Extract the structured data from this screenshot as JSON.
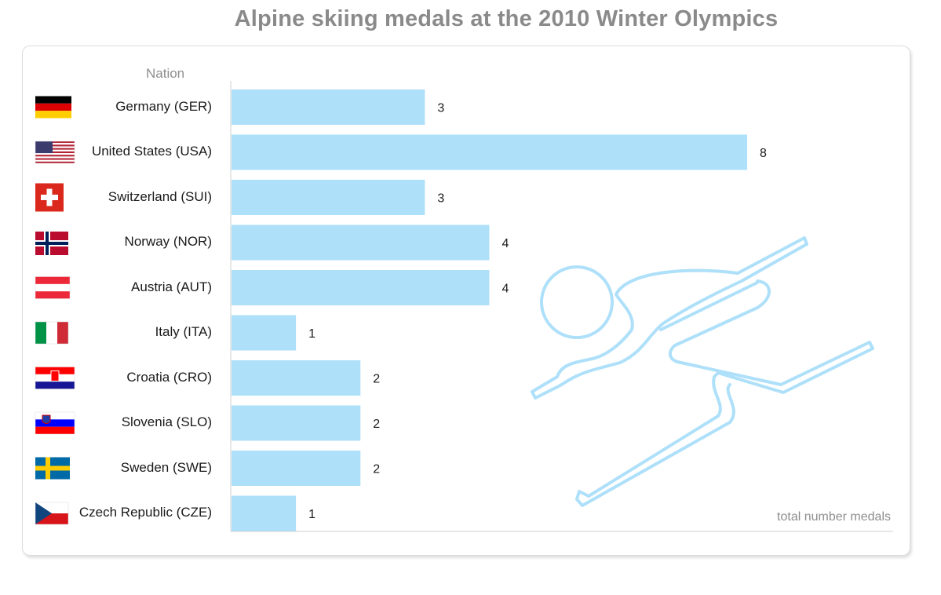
{
  "chart_data": {
    "type": "bar",
    "orientation": "horizontal",
    "title": "Alpine skiing medals at the 2010 Winter Olympics",
    "category_header": "Nation",
    "xlabel": "total number medals",
    "categories": [
      "Germany (GER)",
      "United States (USA)",
      "Switzerland (SUI)",
      "Norway (NOR)",
      "Austria (AUT)",
      "Italy (ITA)",
      "Croatia (CRO)",
      "Slovenia (SLO)",
      "Sweden (SWE)",
      "Czech Republic (CZE)"
    ],
    "values": [
      3,
      8,
      3,
      4,
      4,
      1,
      2,
      2,
      2,
      1
    ],
    "xlim": [
      0,
      8
    ],
    "grid": false,
    "bar_color": "#aee0fa"
  },
  "flags": [
    "germany-flag",
    "usa-flag",
    "switzerland-flag",
    "norway-flag",
    "austria-flag",
    "italy-flag",
    "croatia-flag",
    "slovenia-flag",
    "sweden-flag",
    "czech-flag"
  ],
  "decoration": "skier-icon"
}
